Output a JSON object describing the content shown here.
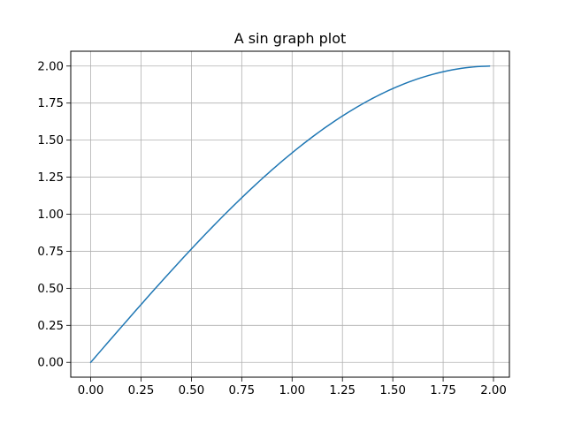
{
  "chart_data": {
    "type": "line",
    "title": "A sin graph plot",
    "xlabel": "",
    "ylabel": "",
    "function": "2*sin(x*pi/4)",
    "x_start": 0.0,
    "x_end": 1.98,
    "x_step": 0.02,
    "x": [
      0.0,
      0.25,
      0.5,
      0.75,
      1.0,
      1.25,
      1.5,
      1.75,
      1.98
    ],
    "y": [
      0.0,
      0.39,
      0.765,
      1.111,
      1.414,
      1.663,
      1.848,
      1.962,
      2.0
    ],
    "xlim": [
      -0.099,
      2.079
    ],
    "ylim": [
      -0.1,
      2.1
    ],
    "xticks": [
      0.0,
      0.25,
      0.5,
      0.75,
      1.0,
      1.25,
      1.5,
      1.75,
      2.0
    ],
    "xtick_labels": [
      "0.00",
      "0.25",
      "0.50",
      "0.75",
      "1.00",
      "1.25",
      "1.50",
      "1.75",
      "2.00"
    ],
    "yticks": [
      0.0,
      0.25,
      0.5,
      0.75,
      1.0,
      1.25,
      1.5,
      1.75,
      2.0
    ],
    "ytick_labels": [
      "0.00",
      "0.25",
      "0.50",
      "0.75",
      "1.00",
      "1.25",
      "1.50",
      "1.75",
      "2.00"
    ],
    "grid": true,
    "legend": "none",
    "colors": {
      "line": "#1f77b4",
      "grid": "#b0b0b0",
      "axes": "#000000"
    }
  }
}
